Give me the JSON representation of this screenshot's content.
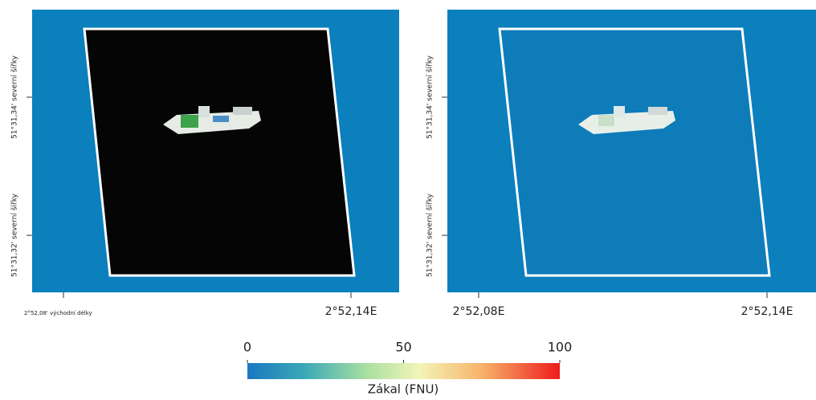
{
  "panels": [
    {
      "y_labels": [
        "51°31,34' severní šířky",
        "51°31,32' severní šířky"
      ],
      "x_labels": [
        "2°52,08' východní délky",
        "2°52,14E"
      ]
    },
    {
      "y_labels": [
        "51°31,34' severní šířky",
        "51°31,32' severní šířky"
      ],
      "x_labels": [
        "2°52,08E",
        "2°52,14E"
      ]
    }
  ],
  "colorbar": {
    "lim": [
      0,
      100
    ],
    "ticks": [
      0,
      50,
      100
    ],
    "label": "Zákal (FNU)"
  }
}
